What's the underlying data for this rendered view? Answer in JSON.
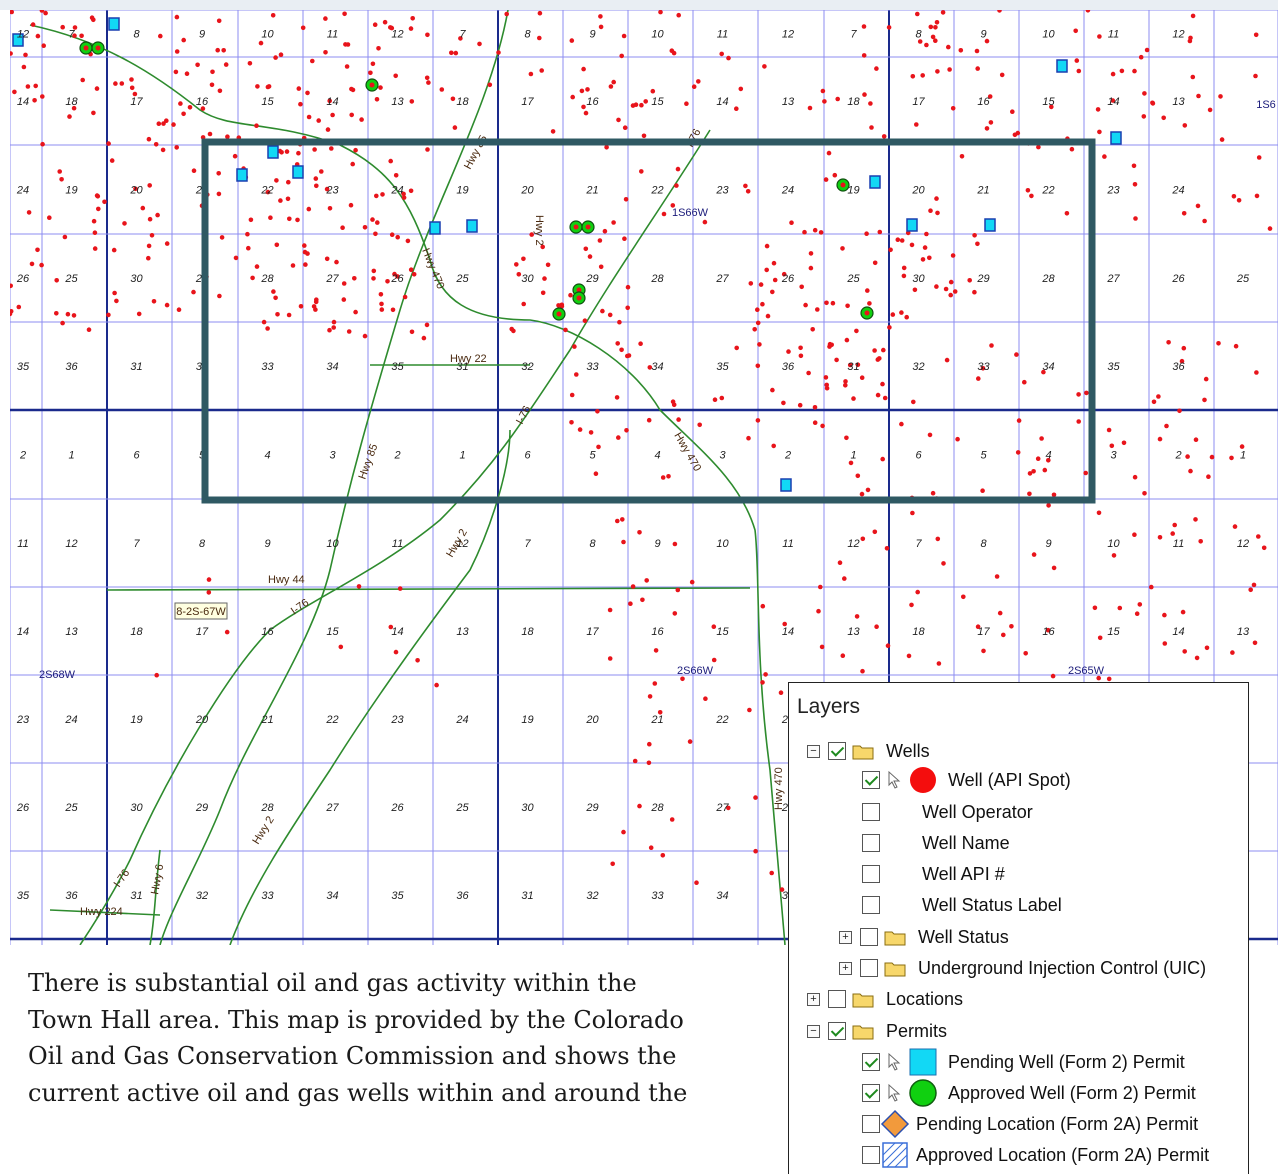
{
  "map": {
    "sections": [
      [
        "12",
        "7",
        "8",
        "9",
        "10",
        "11",
        "12",
        "7",
        "8",
        "9",
        "10",
        "11",
        "12",
        "7",
        "8",
        "9",
        "10",
        "11",
        "12"
      ],
      [
        "14",
        "18",
        "17",
        "16",
        "15",
        "14",
        "13",
        "18",
        "17",
        "16",
        "15",
        "14",
        "13",
        "18",
        "17",
        "16",
        "15",
        "14",
        "13"
      ],
      [
        "24",
        "19",
        "20",
        "21",
        "22",
        "23",
        "24",
        "19",
        "20",
        "21",
        "22",
        "23",
        "24",
        "19",
        "20",
        "21",
        "22",
        "23",
        "24"
      ],
      [
        "26",
        "25",
        "30",
        "29",
        "28",
        "27",
        "26",
        "25",
        "30",
        "29",
        "28",
        "27",
        "26",
        "25",
        "30",
        "29",
        "28",
        "27",
        "26",
        "25"
      ],
      [
        "35",
        "36",
        "31",
        "32",
        "33",
        "34",
        "35",
        "31",
        "32",
        "33",
        "34",
        "35",
        "36",
        "31",
        "32",
        "33",
        "34",
        "35",
        "36"
      ],
      [
        "2",
        "1",
        "6",
        "5",
        "4",
        "3",
        "2",
        "1",
        "6",
        "5",
        "4",
        "3",
        "2",
        "1",
        "6",
        "5",
        "4",
        "3",
        "2",
        "1"
      ],
      [
        "11",
        "12",
        "7",
        "8",
        "9",
        "10",
        "11",
        "12",
        "7",
        "8",
        "9",
        "10",
        "11",
        "12",
        "7",
        "8",
        "9",
        "10",
        "11",
        "12"
      ],
      [
        "14",
        "13",
        "18",
        "17",
        "16",
        "15",
        "14",
        "13",
        "18",
        "17",
        "16",
        "15",
        "14",
        "13",
        "18",
        "17",
        "16",
        "15",
        "14",
        "13"
      ],
      [
        "23",
        "24",
        "19",
        "20",
        "21",
        "22",
        "23",
        "24",
        "19",
        "20",
        "21",
        "22",
        "23",
        "24",
        "19",
        "20",
        "21",
        "22",
        "23"
      ],
      [
        "26",
        "25",
        "30",
        "29",
        "28",
        "27",
        "26",
        "25",
        "30",
        "29",
        "28",
        "27",
        "26",
        "25"
      ],
      [
        "35",
        "36",
        "31",
        "32",
        "33",
        "34",
        "35",
        "36",
        "31",
        "32",
        "33",
        "34",
        "35",
        "36"
      ]
    ],
    "road_labels": [
      "Hwy 85",
      "I-76",
      "Hwy 2",
      "Hwy 470",
      "Hwy 22",
      "Hwy 85",
      "I-76",
      "Hwy 470",
      "Hwy 2",
      "Hwy 44",
      "I-76",
      "Hwy 2",
      "Hwy 470",
      "I-76",
      "Hwy 6",
      "Hwy 224"
    ],
    "township_labels": [
      "1S66W",
      "2S68W",
      "2S66W",
      "2S65W",
      "1S6"
    ],
    "boxed_label": "8-2S-67W",
    "colors": {
      "section_line": "#8c8cf0",
      "township_line": "#1a2a8c",
      "road": "#2e8b2e",
      "well": "#e8141b",
      "highlight": "#2f5963"
    }
  },
  "caption": {
    "lines": [
      "There is substantial oil and gas activity within the",
      "Town Hall area. This map is provided by the Colorado",
      "Oil and Gas Conservation Commission and shows the",
      "current active oil and gas wells within and around the"
    ]
  },
  "layers": {
    "title": "Layers",
    "items": [
      {
        "label": "Wells",
        "checked": true,
        "expander": "minus",
        "folder": true
      },
      {
        "label": "Well (API Spot)",
        "checked": true,
        "symbol": "red-dot",
        "cursor": true
      },
      {
        "label": "Well Operator",
        "checked": false
      },
      {
        "label": "Well Name",
        "checked": false
      },
      {
        "label": "Well API #",
        "checked": false
      },
      {
        "label": "Well Status Label",
        "checked": false
      },
      {
        "label": "Well Status",
        "checked": false,
        "expander": "plus",
        "folder": true
      },
      {
        "label": "Underground Injection Control (UIC)",
        "checked": false,
        "expander": "plus",
        "folder": true
      },
      {
        "label": "Locations",
        "checked": false,
        "expander": "plus",
        "folder": true
      },
      {
        "label": "Permits",
        "checked": true,
        "expander": "minus",
        "folder": true
      },
      {
        "label": "Pending Well (Form 2) Permit",
        "checked": true,
        "symbol": "cyan-square",
        "cursor": true
      },
      {
        "label": "Approved Well (Form 2) Permit",
        "checked": true,
        "symbol": "green-circle",
        "cursor": true
      },
      {
        "label": "Pending Location (Form 2A) Permit",
        "checked": false,
        "symbol": "orange-diamond"
      },
      {
        "label": "Approved Location (Form 2A) Permit",
        "checked": false,
        "symbol": "hatched-square"
      }
    ],
    "colors": {
      "red-dot": "#f40d0d",
      "cyan-square": "#12d8f5",
      "green-circle": "#10d010",
      "orange-diamond": "#f29a3c",
      "hatched": "#3a6fd8"
    }
  }
}
